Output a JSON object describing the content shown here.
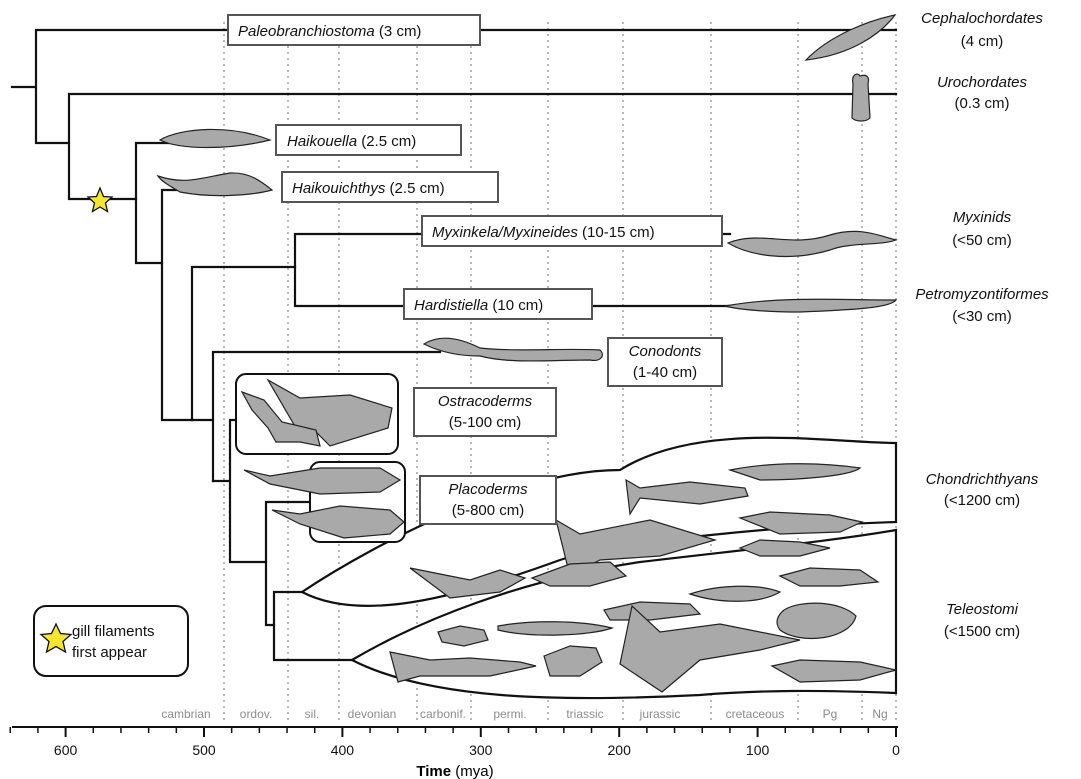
{
  "taxa": {
    "cephalochordates": {
      "name": "Cephalochordates",
      "size": "(4 cm)"
    },
    "urochordates": {
      "name": "Urochordates",
      "size": "(0.3 cm)"
    },
    "paleobranchiostoma": {
      "name": "Paleobranchiostoma",
      "size": " (3 cm)"
    },
    "haikouella": {
      "name": "Haikouella",
      "size": " (2.5 cm)"
    },
    "haikouichthys": {
      "name": "Haikouichthys",
      "size": " (2.5 cm)"
    },
    "myxinkela": {
      "name": "Myxinkela/Myxineides",
      "size": " (10-15 cm)"
    },
    "hardistiella": {
      "name": "Hardistiella",
      "size": " (10 cm)"
    },
    "myxinids": {
      "name": "Myxinids",
      "size": "(<50 cm)"
    },
    "petromyzontiformes": {
      "name": "Petromyzontiformes",
      "size": "(<30 cm)"
    },
    "conodonts": {
      "name": "Conodonts",
      "size": "(1-40 cm)"
    },
    "ostracoderms": {
      "name": "Ostracoderms",
      "size": "(5-100 cm)"
    },
    "placoderms": {
      "name": "Placoderms",
      "size": "(5-800 cm)"
    },
    "chondrichthyans": {
      "name": "Chondrichthyans",
      "size": "(<1200 cm)"
    },
    "teleostomi": {
      "name": "Teleostomi",
      "size": "(<1500 cm)"
    }
  },
  "legend": {
    "line1": "gill filaments",
    "line2": "first appear",
    "icon": "star-icon",
    "star_color": "#f5e431"
  },
  "periods": [
    "cambrian",
    "ordov.",
    "sil.",
    "devonian",
    "carbonif.",
    "permi.",
    "triassic",
    "jurassic",
    "cretaceous",
    "Pg",
    "Ng"
  ],
  "axis": {
    "label_bold": "Time",
    "label_unit": " (mya)",
    "ticks": [
      "600",
      "500",
      "400",
      "300",
      "200",
      "100",
      "0"
    ],
    "range_mya": [
      640,
      0
    ]
  },
  "colors": {
    "silhouette": "#a9a9a9",
    "grid": "#9a9a9a",
    "period_text": "#8c8c8c"
  }
}
